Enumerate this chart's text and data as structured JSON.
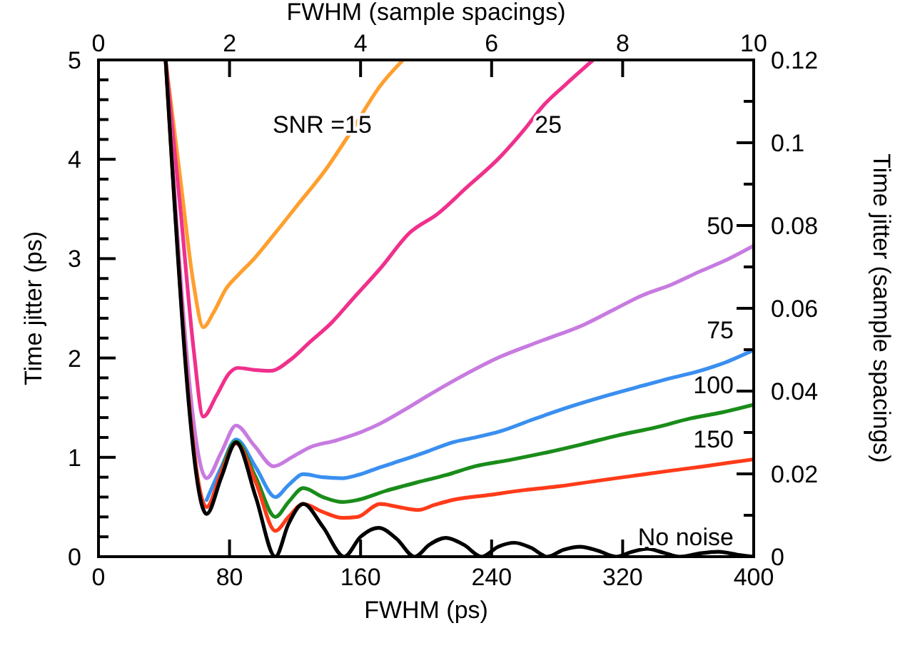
{
  "chart_data": {
    "type": "line",
    "xlabel": "FWHM (ps)",
    "ylabel": "Time jitter (ps)",
    "x2label": "FWHM (sample spacings)",
    "y2label": "Time jitter (sample spacings)",
    "xlim": [
      0,
      400
    ],
    "xticks": [
      0,
      80,
      160,
      240,
      320,
      400
    ],
    "ylim": [
      0,
      5
    ],
    "yticks": [
      0,
      {
        "value": 0.2,
        "label": null
      },
      {
        "value": 0.4,
        "label": null
      },
      {
        "value": 0.6,
        "label": null
      },
      {
        "value": 0.8,
        "label": null
      },
      1,
      {
        "value": 1.2,
        "label": null
      },
      {
        "value": 1.4,
        "label": null
      },
      {
        "value": 1.6,
        "label": null
      },
      {
        "value": 1.8,
        "label": null
      },
      2,
      {
        "value": 2.2,
        "label": null
      },
      {
        "value": 2.4,
        "label": null
      },
      {
        "value": 2.6,
        "label": null
      },
      {
        "value": 2.8,
        "label": null
      },
      3,
      {
        "value": 3.2,
        "label": null
      },
      {
        "value": 3.4,
        "label": null
      },
      {
        "value": 3.6,
        "label": null
      },
      {
        "value": 3.8,
        "label": null
      },
      4,
      {
        "value": 4.2,
        "label": null
      },
      {
        "value": 4.4,
        "label": null
      },
      {
        "value": 4.6,
        "label": null
      },
      {
        "value": 4.8,
        "label": null
      },
      5
    ],
    "x2lim": [
      0,
      10
    ],
    "x2ticks": [
      0,
      2,
      4,
      6,
      8,
      10
    ],
    "y2lim": [
      0,
      0.12
    ],
    "y2ticks": [
      0,
      {
        "value": 0.01,
        "label": null
      },
      0.02,
      {
        "value": 0.03,
        "label": null
      },
      0.04,
      {
        "value": 0.05,
        "label": null
      },
      0.06,
      {
        "value": 0.07,
        "label": null
      },
      0.08,
      {
        "value": 0.09,
        "label": null
      },
      0.1,
      {
        "value": 0.11,
        "label": null
      },
      0.12
    ],
    "grid": false,
    "marker": "none",
    "line_style": "solid",
    "series": [
      {
        "name": "SNR =15",
        "color": "#ff9f2e",
        "x": [
          41,
          50,
          58,
          64,
          70,
          78,
          85,
          95,
          108,
          122,
          138,
          155,
          172,
          186
        ],
        "values": [
          5,
          3.8,
          2.75,
          2.31,
          2.45,
          2.7,
          2.83,
          3.0,
          3.26,
          3.55,
          3.88,
          4.3,
          4.74,
          5
        ]
      },
      {
        "name": "25",
        "color": "#f0308c",
        "x": [
          41,
          50,
          58,
          64,
          72,
          80,
          85,
          95,
          105,
          117,
          129,
          142,
          155,
          172,
          190,
          207,
          225,
          245,
          260,
          271,
          285,
          302
        ],
        "values": [
          5,
          3.5,
          2.1,
          1.41,
          1.62,
          1.85,
          1.9,
          1.88,
          1.87,
          1.98,
          2.16,
          2.35,
          2.59,
          2.9,
          3.26,
          3.45,
          3.72,
          4.02,
          4.3,
          4.53,
          4.75,
          5
        ]
      },
      {
        "name": "50",
        "color": "#c77be0",
        "x": [
          41,
          66,
          75,
          84,
          95,
          107,
          118,
          129,
          145,
          158,
          172,
          187,
          201,
          220,
          245,
          270,
          297,
          315,
          332,
          350,
          367,
          385,
          400
        ],
        "values": [
          5,
          0.79,
          1.05,
          1.32,
          1.12,
          0.91,
          1.0,
          1.1,
          1.17,
          1.24,
          1.34,
          1.48,
          1.62,
          1.8,
          2.01,
          2.17,
          2.34,
          2.49,
          2.63,
          2.74,
          2.87,
          3.0,
          3.13
        ]
      },
      {
        "name": "75",
        "color": "#3a8ff0",
        "x": [
          66,
          75,
          84,
          96,
          108,
          116,
          125,
          137,
          149,
          158,
          172,
          187,
          201,
          216,
          230,
          245,
          265,
          288,
          310,
          332,
          350,
          367,
          385,
          400
        ],
        "values": [
          0.57,
          0.9,
          1.18,
          0.9,
          0.6,
          0.72,
          0.83,
          0.8,
          0.79,
          0.82,
          0.9,
          0.98,
          1.06,
          1.15,
          1.2,
          1.26,
          1.38,
          1.51,
          1.62,
          1.72,
          1.8,
          1.87,
          1.97,
          2.08
        ]
      },
      {
        "name": "100",
        "color": "#1a8c1a",
        "x": [
          75,
          84,
          96,
          108,
          116,
          125,
          137,
          149,
          158,
          175,
          195,
          212,
          230,
          250,
          274,
          295,
          317,
          340,
          361,
          380,
          400
        ],
        "values": [
          0.85,
          1.16,
          0.8,
          0.4,
          0.55,
          0.69,
          0.6,
          0.55,
          0.57,
          0.66,
          0.75,
          0.82,
          0.91,
          0.97,
          1.05,
          1.13,
          1.22,
          1.3,
          1.39,
          1.45,
          1.53
        ]
      },
      {
        "name": "150",
        "color": "#ff3b1a",
        "x": [
          41,
          66,
          75,
          84,
          96,
          108,
          116,
          125,
          137,
          149,
          158,
          172,
          183,
          195,
          205,
          216,
          238,
          260,
          282,
          303,
          325,
          347,
          370,
          400
        ],
        "values": [
          5,
          0.5,
          0.85,
          1.14,
          0.75,
          0.26,
          0.4,
          0.53,
          0.45,
          0.39,
          0.4,
          0.53,
          0.5,
          0.47,
          0.52,
          0.57,
          0.62,
          0.67,
          0.71,
          0.76,
          0.81,
          0.86,
          0.91,
          0.98
        ]
      },
      {
        "name": "No noise",
        "color": "#000000",
        "x": [
          41,
          66,
          75,
          84,
          96,
          108,
          116,
          125,
          137,
          150,
          160,
          171,
          182,
          193,
          202,
          212,
          223,
          234,
          244,
          254,
          264,
          274,
          284,
          294,
          305,
          316,
          326,
          335,
          345,
          355,
          366,
          378,
          390,
          400
        ],
        "values": [
          5,
          0.43,
          0.8,
          1.15,
          0.6,
          0,
          0.33,
          0.53,
          0.3,
          0,
          0.2,
          0.29,
          0.18,
          0,
          0.12,
          0.19,
          0.12,
          0,
          0.1,
          0.14,
          0.09,
          0,
          0.07,
          0.1,
          0.06,
          0,
          0.05,
          0.08,
          0.04,
          0,
          0.03,
          0.05,
          0.02,
          0
        ]
      }
    ]
  }
}
